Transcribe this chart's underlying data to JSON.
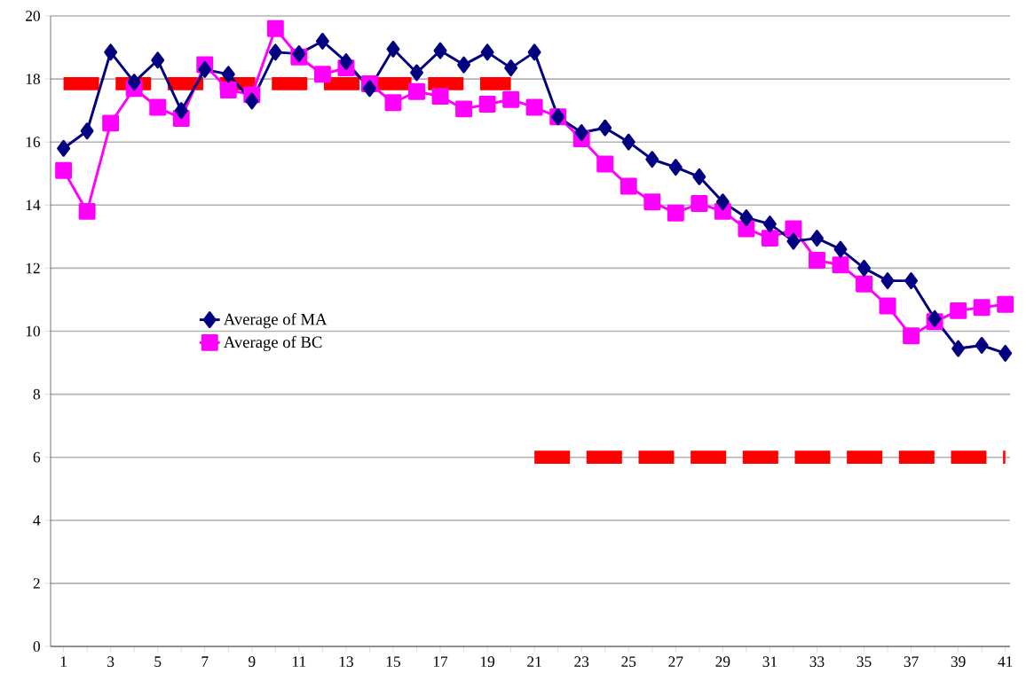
{
  "chart_data": {
    "type": "line",
    "categories": [
      "1",
      null,
      "3",
      null,
      "5",
      null,
      "7",
      null,
      "9",
      null,
      "11",
      null,
      "13",
      null,
      "15",
      null,
      "17",
      null,
      "19",
      null,
      "21",
      null,
      "23",
      null,
      "25",
      null,
      "27",
      null,
      "29",
      null,
      "31",
      null,
      "33",
      null,
      "35",
      null,
      "37",
      null,
      "39",
      null,
      "41"
    ],
    "series": [
      {
        "name": "Average of MA",
        "color": "#000080",
        "marker": "diamond",
        "line_style": "solid",
        "values": [
          15.8,
          16.35,
          18.85,
          17.9,
          18.6,
          17.0,
          18.3,
          18.15,
          17.3,
          18.85,
          18.8,
          19.2,
          18.55,
          17.7,
          18.95,
          18.2,
          18.9,
          18.45,
          18.85,
          18.35,
          18.85,
          16.8,
          16.3,
          16.45,
          16.0,
          15.45,
          15.2,
          14.9,
          14.1,
          13.6,
          13.4,
          12.85,
          12.95,
          12.6,
          12.0,
          11.6,
          11.6,
          10.4,
          9.45,
          9.55,
          9.3
        ]
      },
      {
        "name": "Average of BC",
        "color": "#ff00ff",
        "marker": "square",
        "line_style": "solid",
        "values": [
          15.1,
          13.8,
          16.6,
          17.7,
          17.1,
          16.75,
          18.45,
          17.65,
          17.5,
          19.6,
          18.7,
          18.15,
          18.35,
          17.85,
          17.25,
          17.6,
          17.45,
          17.05,
          17.2,
          17.35,
          17.1,
          16.8,
          16.1,
          15.3,
          14.6,
          14.1,
          13.75,
          14.05,
          13.8,
          13.25,
          12.95,
          13.25,
          12.25,
          12.1,
          11.5,
          10.8,
          9.85,
          10.3,
          10.65,
          10.75,
          10.85
        ]
      },
      {
        "color": "#ff0000",
        "marker": "none",
        "line_style": "dashed",
        "values": [
          17.85,
          17.85,
          17.85,
          17.85,
          17.85,
          17.85,
          17.85,
          17.85,
          17.85,
          17.85,
          17.85,
          17.85,
          17.85,
          17.85,
          17.85,
          17.85,
          17.85,
          17.85,
          17.85,
          17.85,
          null,
          null,
          null,
          null,
          null,
          null,
          null,
          null,
          null,
          null,
          null,
          null,
          null,
          null,
          null,
          null,
          null,
          null,
          null,
          null,
          null
        ]
      },
      {
        "color": "#ff0000",
        "marker": "none",
        "line_style": "dashed",
        "values": [
          null,
          null,
          null,
          null,
          null,
          null,
          null,
          null,
          null,
          null,
          null,
          null,
          null,
          null,
          null,
          null,
          null,
          null,
          null,
          null,
          6,
          6,
          6,
          6,
          6,
          6,
          6,
          6,
          6,
          6,
          6,
          6,
          6,
          6,
          6,
          6,
          6,
          6,
          6,
          6,
          6
        ]
      }
    ],
    "ylim": [
      0,
      20
    ],
    "yticks": [
      0,
      2,
      4,
      6,
      8,
      10,
      12,
      14,
      16,
      18,
      20
    ],
    "grid": "y",
    "legend": "left"
  }
}
